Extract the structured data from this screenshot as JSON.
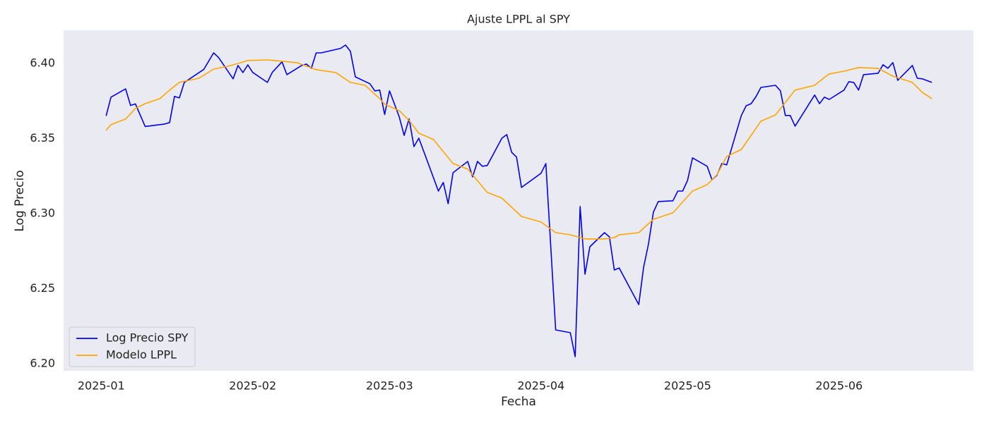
{
  "chart_data": {
    "type": "line",
    "title": "Ajuste LPPL al SPY",
    "x_label": "Fecha",
    "y_label": "Log Precio",
    "xlim": [
      -7.7,
      178.5
    ],
    "ylim": [
      6.1953,
      6.422
    ],
    "xticks": [
      {
        "value": 0,
        "label": "2025-01"
      },
      {
        "value": 31,
        "label": "2025-02"
      },
      {
        "value": 59,
        "label": "2025-03"
      },
      {
        "value": 90,
        "label": "2025-04"
      },
      {
        "value": 120,
        "label": "2025-05"
      },
      {
        "value": 151,
        "label": "2025-06"
      }
    ],
    "yticks": [
      {
        "value": 6.2,
        "label": "6.20"
      },
      6.25,
      {
        "value": 6.3,
        "label": "6.30"
      },
      6.35,
      {
        "value": 6.4,
        "label": "6.40"
      }
    ],
    "grid": false,
    "legend_position": "lower-left",
    "background": "#eaeaf2",
    "series": [
      {
        "name": "Log Precio SPY",
        "color": "#0000ee",
        "x": [
          1,
          2,
          5,
          6,
          7,
          9,
          13,
          14,
          15,
          16,
          17,
          21,
          23,
          24,
          27,
          28,
          29,
          30,
          31,
          34,
          35,
          37,
          38,
          41,
          42,
          43,
          44,
          45,
          49,
          50,
          51,
          52,
          55,
          56,
          57,
          58,
          59,
          61,
          62,
          63,
          64,
          65,
          69,
          70,
          71,
          72,
          75,
          76,
          77,
          78,
          79,
          82,
          83,
          84,
          85,
          86,
          90,
          91,
          93,
          96,
          97,
          98,
          99,
          100,
          103,
          104,
          105,
          106,
          110,
          111,
          112,
          113,
          114,
          117,
          118,
          119,
          120,
          121,
          124,
          125,
          126,
          127,
          128,
          131,
          132,
          133,
          134,
          135,
          138,
          139,
          140,
          141,
          142,
          146,
          147,
          148,
          149,
          152,
          153,
          154,
          155,
          156,
          159,
          160,
          161,
          162,
          163,
          166,
          167,
          168,
          170
        ],
        "values": [
          6.365,
          6.3775,
          6.383,
          6.372,
          6.373,
          6.358,
          6.3596,
          6.3606,
          6.378,
          6.377,
          6.3873,
          6.396,
          6.407,
          6.404,
          6.3897,
          6.3986,
          6.3939,
          6.399,
          6.394,
          6.3873,
          6.394,
          6.401,
          6.3925,
          6.3986,
          6.3995,
          6.3967,
          6.407,
          6.407,
          6.41,
          6.4122,
          6.408,
          6.391,
          6.3864,
          6.3817,
          6.3822,
          6.366,
          6.3817,
          6.3643,
          6.352,
          6.363,
          6.3446,
          6.3502,
          6.315,
          6.3207,
          6.3066,
          6.3272,
          6.3347,
          6.3244,
          6.3347,
          6.3315,
          6.332,
          6.3502,
          6.3526,
          6.3408,
          6.3376,
          6.3174,
          6.3268,
          6.3333,
          6.2225,
          6.2207,
          6.2047,
          6.3047,
          6.2596,
          6.2779,
          6.2873,
          6.2845,
          6.2624,
          6.2638,
          6.2394,
          6.2643,
          6.2798,
          6.3009,
          6.308,
          6.3085,
          6.315,
          6.315,
          6.3221,
          6.3371,
          6.3315,
          6.3225,
          6.3254,
          6.3333,
          6.3324,
          6.3653,
          6.3718,
          6.3732,
          6.3779,
          6.384,
          6.3854,
          6.3817,
          6.3653,
          6.3653,
          6.3582,
          6.3789,
          6.3732,
          6.3775,
          6.376,
          6.3822,
          6.3878,
          6.3873,
          6.3822,
          6.3925,
          6.3934,
          6.3991,
          6.3967,
          6.4005,
          6.3887,
          6.3986,
          6.3901,
          6.3897,
          6.3873
        ]
      },
      {
        "name": "Modelo LPPL",
        "color": "#ffa500",
        "x": [
          1,
          2,
          5,
          7,
          9,
          12,
          14,
          16,
          20,
          23,
          26,
          29,
          30,
          34,
          37,
          40,
          44,
          48,
          51,
          54,
          57,
          58,
          61,
          63,
          65,
          68,
          72,
          75,
          79,
          82,
          86,
          90,
          93,
          96,
          99,
          103,
          105,
          106,
          110,
          113,
          117,
          121,
          124,
          126,
          128,
          131,
          135,
          138,
          142,
          146,
          148,
          149,
          152,
          155,
          159,
          162,
          166,
          168,
          170
        ],
        "values": [
          6.3554,
          6.3592,
          6.3629,
          6.37,
          6.3732,
          6.3765,
          6.3822,
          6.3873,
          6.3901,
          6.3962,
          6.3981,
          6.4009,
          6.4019,
          6.4023,
          6.4014,
          6.4005,
          6.3958,
          6.3939,
          6.3873,
          6.3854,
          6.3765,
          6.3728,
          6.3685,
          6.362,
          6.3535,
          6.3493,
          6.3333,
          6.3296,
          6.3141,
          6.3103,
          6.2981,
          6.2944,
          6.2873,
          6.2859,
          6.2831,
          6.2831,
          6.284,
          6.2859,
          6.2873,
          6.2962,
          6.3005,
          6.315,
          6.3192,
          6.3258,
          6.338,
          6.3427,
          6.3615,
          6.3657,
          6.3822,
          6.3854,
          6.3906,
          6.393,
          6.3948,
          6.3972,
          6.3967,
          6.3915,
          6.3873,
          6.3808,
          6.3765
        ]
      }
    ]
  }
}
